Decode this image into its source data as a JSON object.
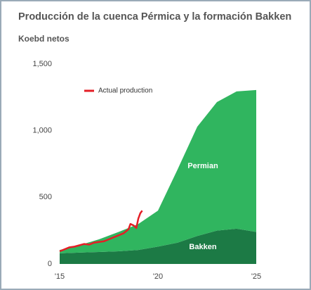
{
  "chart_data": {
    "type": "area",
    "title": "Producción de la cuenca Pérmica y la formación Bakken",
    "subtitle": "Koebd netos",
    "x": [
      2015,
      2016,
      2017,
      2018,
      2019,
      2020,
      2021,
      2022,
      2023,
      2024,
      2025
    ],
    "series": [
      {
        "name": "Bakken",
        "color": "#1c7a45",
        "values": [
          80,
          85,
          90,
          95,
          105,
          130,
          160,
          210,
          250,
          265,
          240
        ]
      },
      {
        "name": "Permian",
        "color": "#30b55f",
        "values": [
          25,
          55,
          95,
          145,
          195,
          270,
          550,
          820,
          965,
          1030,
          1065
        ]
      },
      {
        "name": "Actual production",
        "type": "line",
        "color": "#e41e26",
        "x": [
          2015,
          2015.25,
          2015.5,
          2015.75,
          2016,
          2016.25,
          2016.5,
          2016.75,
          2017,
          2017.25,
          2017.5,
          2017.75,
          2018,
          2018.25,
          2018.5,
          2018.6,
          2018.75,
          2018.9,
          2019,
          2019.1,
          2019.2
        ],
        "values": [
          95,
          110,
          125,
          130,
          140,
          150,
          145,
          160,
          165,
          170,
          185,
          200,
          215,
          230,
          260,
          300,
          290,
          270,
          340,
          380,
          400
        ]
      }
    ],
    "xlim": [
      2015,
      2025
    ],
    "xticks": [
      {
        "value": 2015,
        "label": "'15"
      },
      {
        "value": 2020,
        "label": "'20"
      },
      {
        "value": 2025,
        "label": "'25"
      }
    ],
    "ylim": [
      0,
      1500
    ],
    "yticks": [
      0,
      500,
      {
        "value": 1000,
        "label": "1,000"
      },
      {
        "value": 1500,
        "label": "1,500"
      }
    ]
  }
}
